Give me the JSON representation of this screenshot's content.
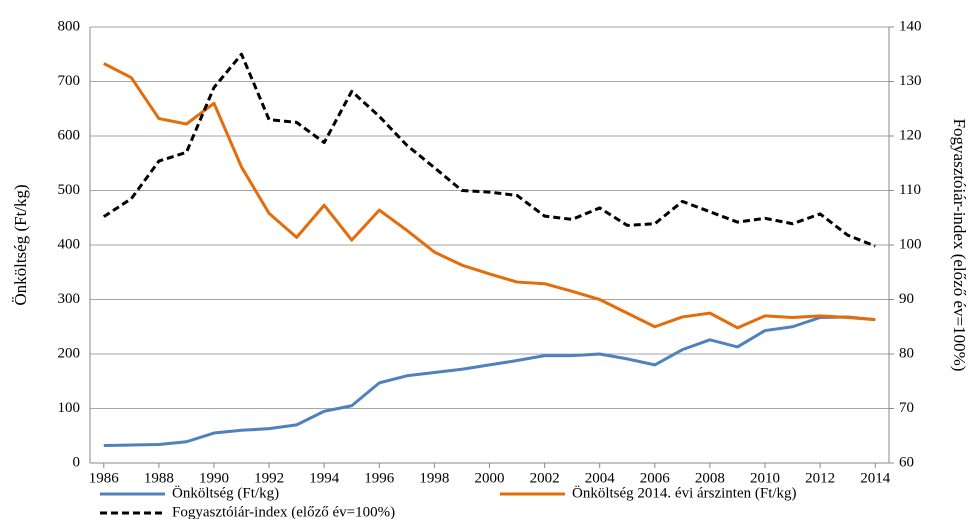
{
  "chart_data": {
    "type": "line",
    "y_label": "Önköltség (Ft/kg)",
    "y2_label": "Fogyasztóiár-index (előző év=100%)",
    "x": [
      1986,
      1987,
      1988,
      1989,
      1990,
      1991,
      1992,
      1993,
      1994,
      1995,
      1996,
      1997,
      1998,
      1999,
      2000,
      2001,
      2002,
      2003,
      2004,
      2005,
      2006,
      2007,
      2008,
      2009,
      2010,
      2011,
      2012,
      2013,
      2014
    ],
    "xlim": [
      1985.5,
      2014.5
    ],
    "xticks": [
      1986,
      1988,
      1990,
      1992,
      1994,
      1996,
      1998,
      2000,
      2002,
      2004,
      2006,
      2008,
      2010,
      2012,
      2014
    ],
    "ylim": [
      0,
      800
    ],
    "yticks": [
      0,
      100,
      200,
      300,
      400,
      500,
      600,
      700,
      800
    ],
    "y2lim": [
      60,
      140
    ],
    "y2ticks": [
      60,
      70,
      80,
      90,
      100,
      110,
      120,
      130,
      140
    ],
    "grid": true,
    "legend": "bottom",
    "series": [
      {
        "name": "Önköltség (Ft/kg)",
        "color": "#4f81bd",
        "dashed": false,
        "values": [
          32,
          33,
          34,
          39,
          55,
          60,
          63,
          70,
          95,
          105,
          147,
          160,
          166,
          172,
          180,
          188,
          197,
          197,
          200,
          191,
          180,
          208,
          226,
          213,
          243,
          250,
          267,
          268,
          263
        ]
      },
      {
        "name": "Önköltség 2014. évi árszinten (Ft/kg)",
        "color": "#e46c0a",
        "dashed": false,
        "values": [
          733,
          707,
          632,
          622,
          660,
          543,
          458,
          414,
          473,
          409,
          464,
          427,
          387,
          363,
          347,
          332,
          329,
          315,
          300,
          275,
          250,
          268,
          275,
          248,
          270,
          267,
          270,
          267,
          263
        ]
      },
      {
        "name": "Fogyasztóiár-index (előző év=100%)",
        "color": "#000000",
        "dashed": true,
        "axis": "y2",
        "values": [
          105.2,
          108.5,
          115.4,
          117,
          128.9,
          135,
          123,
          122.5,
          118.8,
          128.2,
          123.6,
          118.3,
          114.2,
          110,
          109.7,
          109.1,
          105.3,
          104.7,
          106.8,
          103.6,
          103.9,
          108,
          106.1,
          104.2,
          104.9,
          103.9,
          105.7,
          101.8,
          99.8
        ]
      }
    ]
  }
}
